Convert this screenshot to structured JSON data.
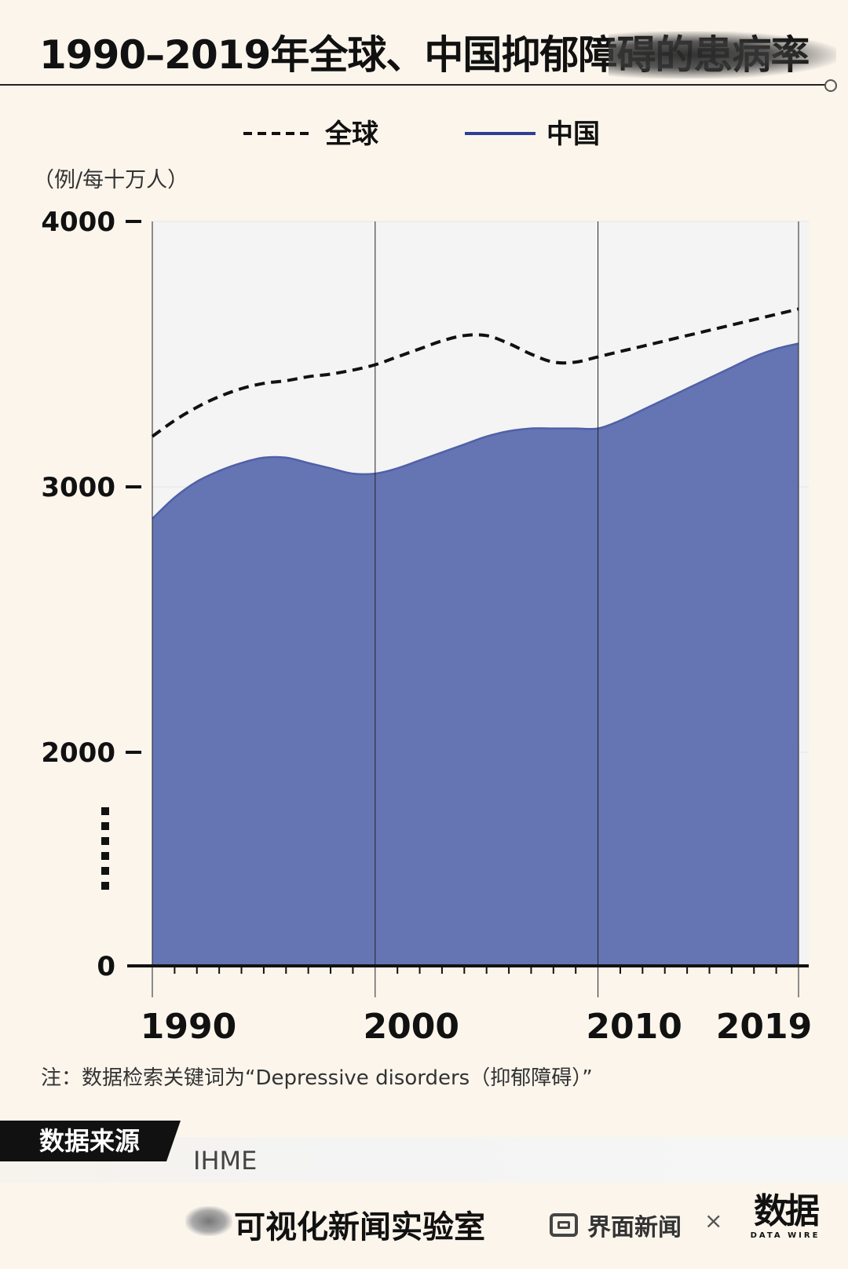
{
  "header": {
    "title": "1990–2019年全球、中国抑郁障碍的患病率"
  },
  "chart_data": {
    "type": "area",
    "unit_label": "（例/每十万人）",
    "legend": {
      "placement": "top",
      "entries": [
        "全球",
        "中国"
      ]
    },
    "y_ticks": [
      "4000",
      "3000",
      "2000",
      "0"
    ],
    "y_axis_break": true,
    "ylim": [
      0,
      4000
    ],
    "xlim": [
      1990,
      2019
    ],
    "x_ticks": [
      "1990",
      "2000",
      "2010",
      "2019"
    ],
    "x": [
      1990,
      1991,
      1992,
      1993,
      1994,
      1995,
      1996,
      1997,
      1998,
      1999,
      2000,
      2001,
      2002,
      2003,
      2004,
      2005,
      2006,
      2007,
      2008,
      2009,
      2010,
      2011,
      2012,
      2013,
      2014,
      2015,
      2016,
      2017,
      2018,
      2019
    ],
    "series": [
      {
        "name": "全球",
        "style": "dashed",
        "color": "#111111",
        "values": [
          3190,
          3250,
          3300,
          3340,
          3370,
          3390,
          3400,
          3415,
          3425,
          3440,
          3460,
          3490,
          3520,
          3550,
          3570,
          3570,
          3540,
          3500,
          3470,
          3470,
          3490,
          3510,
          3530,
          3550,
          3570,
          3590,
          3610,
          3630,
          3650,
          3670
        ]
      },
      {
        "name": "中国",
        "style": "solid-area",
        "color": "#2e3f95",
        "fill": "#6575b3",
        "values": [
          2880,
          2960,
          3020,
          3060,
          3090,
          3110,
          3110,
          3090,
          3070,
          3050,
          3050,
          3070,
          3100,
          3130,
          3160,
          3190,
          3210,
          3220,
          3220,
          3220,
          3220,
          3250,
          3290,
          3330,
          3370,
          3410,
          3450,
          3490,
          3520,
          3540
        ]
      }
    ]
  },
  "footnote": "注：数据检索关键词为“Depressive disorders（抑郁障碍）”",
  "source": {
    "label": "数据来源",
    "value": "IHME"
  },
  "footer": {
    "lab": "可视化新闻实验室",
    "partner": "界面新闻",
    "times": "×",
    "brand_glyph": "数据",
    "brand_sub": "DATA WIRE"
  }
}
